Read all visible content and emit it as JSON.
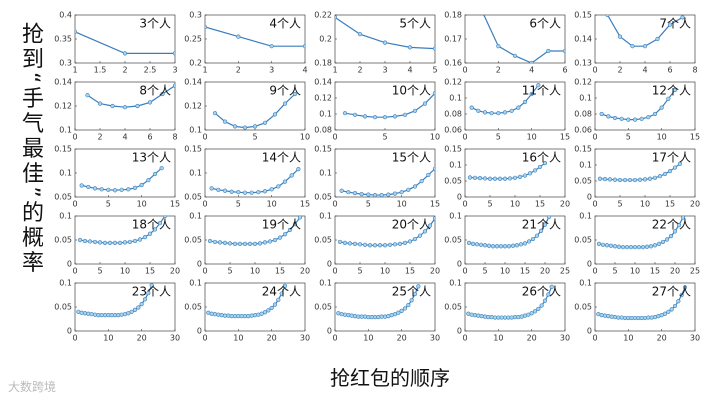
{
  "ylabel": "抢到“手气最佳”的概率",
  "xlabel": "抢红包的顺序",
  "watermark": "大数跨境",
  "chart_data": [
    {
      "type": "line",
      "title": "3个人",
      "x": [
        1,
        2,
        3
      ],
      "values": [
        0.365,
        0.32,
        0.32
      ],
      "xlim": [
        1,
        3
      ],
      "ylim": [
        0.3,
        0.4
      ],
      "xticks": [
        1,
        1.5,
        2,
        2.5,
        3
      ],
      "yticks": [
        0.3,
        0.35,
        0.4
      ],
      "color": "#3a7dbf"
    },
    {
      "type": "line",
      "title": "4个人",
      "x": [
        1,
        2,
        3,
        4
      ],
      "values": [
        0.275,
        0.255,
        0.235,
        0.235
      ],
      "xlim": [
        1,
        4
      ],
      "ylim": [
        0.2,
        0.3
      ],
      "xticks": [
        1,
        2,
        3,
        4
      ],
      "yticks": [
        0.2,
        0.25,
        0.3
      ],
      "color": "#3a7dbf"
    },
    {
      "type": "line",
      "title": "5个人",
      "x": [
        1,
        2,
        3,
        4,
        5
      ],
      "values": [
        0.218,
        0.204,
        0.197,
        0.193,
        0.192
      ],
      "xlim": [
        1,
        5
      ],
      "ylim": [
        0.18,
        0.22
      ],
      "xticks": [
        1,
        2,
        3,
        4,
        5
      ],
      "yticks": [
        0.18,
        0.2,
        0.22
      ],
      "color": "#3a7dbf"
    },
    {
      "type": "line",
      "title": "6个人",
      "x": [
        1,
        2,
        3,
        4,
        5,
        6
      ],
      "values": [
        0.182,
        0.167,
        0.163,
        0.16,
        0.165,
        0.165
      ],
      "xlim": [
        0,
        6
      ],
      "ylim": [
        0.16,
        0.18
      ],
      "xticks": [
        0,
        2,
        4,
        6
      ],
      "yticks": [
        0.16,
        0.17,
        0.18
      ],
      "color": "#3a7dbf"
    },
    {
      "type": "line",
      "title": "7个人",
      "x": [
        1,
        2,
        3,
        4,
        5,
        6,
        7
      ],
      "values": [
        0.15,
        0.141,
        0.137,
        0.137,
        0.14,
        0.146,
        0.149
      ],
      "xlim": [
        0,
        8
      ],
      "ylim": [
        0.13,
        0.15
      ],
      "xticks": [
        0,
        2,
        4,
        6,
        8
      ],
      "yticks": [
        0.13,
        0.14,
        0.15
      ],
      "color": "#3a7dbf"
    },
    {
      "type": "line",
      "title": "8个人",
      "x": [
        1,
        2,
        3,
        4,
        5,
        6,
        7,
        8
      ],
      "values": [
        0.129,
        0.122,
        0.12,
        0.119,
        0.12,
        0.123,
        0.13,
        0.137
      ],
      "xlim": [
        0,
        8
      ],
      "ylim": [
        0.1,
        0.14
      ],
      "xticks": [
        0,
        2,
        4,
        6,
        8
      ],
      "yticks": [
        0.1,
        0.12,
        0.14
      ],
      "color": "#3a7dbf"
    },
    {
      "type": "line",
      "title": "9个人",
      "x": [
        1,
        2,
        3,
        4,
        5,
        6,
        7,
        8,
        9
      ],
      "values": [
        0.114,
        0.107,
        0.103,
        0.102,
        0.103,
        0.106,
        0.113,
        0.122,
        0.13
      ],
      "xlim": [
        0,
        10
      ],
      "ylim": [
        0.1,
        0.14
      ],
      "xticks": [
        0,
        5,
        10
      ],
      "yticks": [
        0.1,
        0.12,
        0.14
      ],
      "color": "#3a7dbf"
    },
    {
      "type": "line",
      "title": "10个人",
      "x": [
        1,
        2,
        3,
        4,
        5,
        6,
        7,
        8,
        9,
        10
      ],
      "values": [
        0.101,
        0.099,
        0.097,
        0.096,
        0.096,
        0.097,
        0.099,
        0.104,
        0.113,
        0.126
      ],
      "xlim": [
        0,
        10
      ],
      "ylim": [
        0.08,
        0.14
      ],
      "xticks": [
        0,
        5,
        10
      ],
      "yticks": [
        0.08,
        0.1,
        0.12,
        0.14
      ],
      "color": "#3a7dbf"
    },
    {
      "type": "line",
      "title": "11个人",
      "x": [
        1,
        2,
        3,
        4,
        5,
        6,
        7,
        8,
        9,
        10,
        11
      ],
      "values": [
        0.088,
        0.084,
        0.082,
        0.081,
        0.081,
        0.082,
        0.084,
        0.088,
        0.095,
        0.105,
        0.116
      ],
      "xlim": [
        0,
        15
      ],
      "ylim": [
        0.06,
        0.12
      ],
      "xticks": [
        0,
        5,
        10,
        15
      ],
      "yticks": [
        0.06,
        0.08,
        0.1,
        0.12
      ],
      "color": "#3a7dbf"
    },
    {
      "type": "line",
      "title": "12个人",
      "x": [
        1,
        2,
        3,
        4,
        5,
        6,
        7,
        8,
        9,
        10,
        11,
        12
      ],
      "values": [
        0.08,
        0.077,
        0.075,
        0.074,
        0.073,
        0.073,
        0.074,
        0.076,
        0.08,
        0.088,
        0.099,
        0.11
      ],
      "xlim": [
        0,
        15
      ],
      "ylim": [
        0.06,
        0.12
      ],
      "xticks": [
        0,
        5,
        10,
        15
      ],
      "yticks": [
        0.06,
        0.08,
        0.1,
        0.12
      ],
      "color": "#3a7dbf"
    },
    {
      "type": "line",
      "title": "13个人",
      "x": [
        1,
        2,
        3,
        4,
        5,
        6,
        7,
        8,
        9,
        10,
        11,
        12,
        13
      ],
      "values": [
        0.074,
        0.071,
        0.068,
        0.066,
        0.065,
        0.064,
        0.065,
        0.066,
        0.069,
        0.075,
        0.085,
        0.098,
        0.11
      ],
      "xlim": [
        0,
        15
      ],
      "ylim": [
        0.05,
        0.15
      ],
      "xticks": [
        0,
        5,
        10,
        15
      ],
      "yticks": [
        0.05,
        0.1,
        0.15
      ],
      "color": "#3a7dbf"
    },
    {
      "type": "line",
      "title": "14个人",
      "x": [
        1,
        2,
        3,
        4,
        5,
        6,
        7,
        8,
        9,
        10,
        11,
        12,
        13,
        14
      ],
      "values": [
        0.068,
        0.065,
        0.063,
        0.061,
        0.06,
        0.059,
        0.059,
        0.06,
        0.062,
        0.066,
        0.072,
        0.082,
        0.095,
        0.108
      ],
      "xlim": [
        0,
        15
      ],
      "ylim": [
        0.05,
        0.15
      ],
      "xticks": [
        0,
        5,
        10,
        15
      ],
      "yticks": [
        0.05,
        0.1,
        0.15
      ],
      "color": "#3a7dbf"
    },
    {
      "type": "line",
      "title": "15个人",
      "x": [
        1,
        2,
        3,
        4,
        5,
        6,
        7,
        8,
        9,
        10,
        11,
        12,
        13,
        14,
        15
      ],
      "values": [
        0.063,
        0.06,
        0.058,
        0.056,
        0.055,
        0.054,
        0.054,
        0.055,
        0.057,
        0.06,
        0.065,
        0.072,
        0.083,
        0.096,
        0.109
      ],
      "xlim": [
        0,
        15
      ],
      "ylim": [
        0.05,
        0.15
      ],
      "xticks": [
        0,
        5,
        10,
        15
      ],
      "yticks": [
        0.05,
        0.1,
        0.15
      ],
      "color": "#3a7dbf"
    },
    {
      "type": "line",
      "title": "16个人",
      "x": [
        1,
        2,
        3,
        4,
        5,
        6,
        7,
        8,
        9,
        10,
        11,
        12,
        13,
        14,
        15,
        16
      ],
      "values": [
        0.061,
        0.06,
        0.059,
        0.058,
        0.057,
        0.057,
        0.057,
        0.057,
        0.058,
        0.06,
        0.063,
        0.067,
        0.074,
        0.083,
        0.094,
        0.106
      ],
      "xlim": [
        0,
        20
      ],
      "ylim": [
        0,
        0.15
      ],
      "xticks": [
        0,
        5,
        10,
        15,
        20
      ],
      "yticks": [
        0,
        0.05,
        0.1,
        0.15
      ],
      "color": "#3a7dbf"
    },
    {
      "type": "line",
      "title": "17个人",
      "x": [
        1,
        2,
        3,
        4,
        5,
        6,
        7,
        8,
        9,
        10,
        11,
        12,
        13,
        14,
        15,
        16,
        17
      ],
      "values": [
        0.057,
        0.056,
        0.055,
        0.054,
        0.053,
        0.053,
        0.053,
        0.053,
        0.054,
        0.055,
        0.057,
        0.06,
        0.065,
        0.072,
        0.081,
        0.092,
        0.104
      ],
      "xlim": [
        0,
        20
      ],
      "ylim": [
        0,
        0.15
      ],
      "xticks": [
        0,
        5,
        10,
        15,
        20
      ],
      "yticks": [
        0,
        0.05,
        0.1,
        0.15
      ],
      "color": "#3a7dbf"
    },
    {
      "type": "line",
      "title": "18个人",
      "x": [
        1,
        2,
        3,
        4,
        5,
        6,
        7,
        8,
        9,
        10,
        11,
        12,
        13,
        14,
        15,
        16,
        17,
        18
      ],
      "values": [
        0.05,
        0.048,
        0.047,
        0.046,
        0.045,
        0.044,
        0.044,
        0.044,
        0.044,
        0.045,
        0.046,
        0.048,
        0.051,
        0.056,
        0.063,
        0.072,
        0.085,
        0.1
      ],
      "xlim": [
        0,
        20
      ],
      "ylim": [
        0,
        0.1
      ],
      "xticks": [
        0,
        5,
        10,
        15,
        20
      ],
      "yticks": [
        0,
        0.05,
        0.1
      ],
      "color": "#3a7dbf"
    },
    {
      "type": "line",
      "title": "19个人",
      "x": [
        1,
        2,
        3,
        4,
        5,
        6,
        7,
        8,
        9,
        10,
        11,
        12,
        13,
        14,
        15,
        16,
        17,
        18,
        19
      ],
      "values": [
        0.048,
        0.046,
        0.045,
        0.044,
        0.043,
        0.042,
        0.042,
        0.042,
        0.042,
        0.042,
        0.043,
        0.045,
        0.047,
        0.05,
        0.055,
        0.062,
        0.071,
        0.083,
        0.097
      ],
      "xlim": [
        0,
        20
      ],
      "ylim": [
        0,
        0.1
      ],
      "xticks": [
        0,
        5,
        10,
        15,
        20
      ],
      "yticks": [
        0,
        0.05,
        0.1
      ],
      "color": "#3a7dbf"
    },
    {
      "type": "line",
      "title": "20个人",
      "x": [
        1,
        2,
        3,
        4,
        5,
        6,
        7,
        8,
        9,
        10,
        11,
        12,
        13,
        14,
        15,
        16,
        17,
        18,
        19,
        20
      ],
      "values": [
        0.046,
        0.044,
        0.043,
        0.042,
        0.041,
        0.04,
        0.039,
        0.039,
        0.039,
        0.039,
        0.04,
        0.041,
        0.042,
        0.044,
        0.047,
        0.052,
        0.059,
        0.068,
        0.08,
        0.095
      ],
      "xlim": [
        0,
        20
      ],
      "ylim": [
        0,
        0.1
      ],
      "xticks": [
        0,
        5,
        10,
        15,
        20
      ],
      "yticks": [
        0,
        0.05,
        0.1
      ],
      "color": "#3a7dbf"
    },
    {
      "type": "line",
      "title": "21个人",
      "x": [
        1,
        2,
        3,
        4,
        5,
        6,
        7,
        8,
        9,
        10,
        11,
        12,
        13,
        14,
        15,
        16,
        17,
        18,
        19,
        20,
        21
      ],
      "values": [
        0.044,
        0.042,
        0.041,
        0.04,
        0.039,
        0.038,
        0.037,
        0.037,
        0.037,
        0.037,
        0.037,
        0.038,
        0.039,
        0.041,
        0.043,
        0.047,
        0.052,
        0.059,
        0.069,
        0.082,
        0.098
      ],
      "xlim": [
        0,
        25
      ],
      "ylim": [
        0,
        0.1
      ],
      "xticks": [
        0,
        5,
        10,
        15,
        20,
        25
      ],
      "yticks": [
        0,
        0.05,
        0.1
      ],
      "color": "#3a7dbf"
    },
    {
      "type": "line",
      "title": "22个人",
      "x": [
        1,
        2,
        3,
        4,
        5,
        6,
        7,
        8,
        9,
        10,
        11,
        12,
        13,
        14,
        15,
        16,
        17,
        18,
        19,
        20,
        21,
        22
      ],
      "values": [
        0.042,
        0.04,
        0.039,
        0.038,
        0.037,
        0.036,
        0.035,
        0.035,
        0.035,
        0.035,
        0.035,
        0.035,
        0.036,
        0.037,
        0.039,
        0.042,
        0.046,
        0.051,
        0.058,
        0.068,
        0.081,
        0.097
      ],
      "xlim": [
        0,
        25
      ],
      "ylim": [
        0,
        0.1
      ],
      "xticks": [
        0,
        5,
        10,
        15,
        20,
        25
      ],
      "yticks": [
        0,
        0.05,
        0.1
      ],
      "color": "#3a7dbf"
    },
    {
      "type": "line",
      "title": "23个人",
      "x": [
        1,
        2,
        3,
        4,
        5,
        6,
        7,
        8,
        9,
        10,
        11,
        12,
        13,
        14,
        15,
        16,
        17,
        18,
        19,
        20,
        21,
        22,
        23
      ],
      "values": [
        0.04,
        0.038,
        0.037,
        0.036,
        0.035,
        0.034,
        0.033,
        0.033,
        0.033,
        0.033,
        0.033,
        0.033,
        0.033,
        0.034,
        0.035,
        0.037,
        0.04,
        0.044,
        0.049,
        0.056,
        0.066,
        0.079,
        0.095
      ],
      "xlim": [
        0,
        30
      ],
      "ylim": [
        0,
        0.1
      ],
      "xticks": [
        0,
        10,
        20,
        30
      ],
      "yticks": [
        0,
        0.05,
        0.1
      ],
      "color": "#3a7dbf"
    },
    {
      "type": "line",
      "title": "24个人",
      "x": [
        1,
        2,
        3,
        4,
        5,
        6,
        7,
        8,
        9,
        10,
        11,
        12,
        13,
        14,
        15,
        16,
        17,
        18,
        19,
        20,
        21,
        22,
        23,
        24
      ],
      "values": [
        0.038,
        0.036,
        0.035,
        0.034,
        0.033,
        0.032,
        0.032,
        0.031,
        0.031,
        0.031,
        0.031,
        0.031,
        0.031,
        0.032,
        0.033,
        0.034,
        0.036,
        0.039,
        0.043,
        0.048,
        0.055,
        0.065,
        0.078,
        0.094
      ],
      "xlim": [
        0,
        30
      ],
      "ylim": [
        0,
        0.1
      ],
      "xticks": [
        0,
        10,
        20,
        30
      ],
      "yticks": [
        0,
        0.05,
        0.1
      ],
      "color": "#3a7dbf"
    },
    {
      "type": "line",
      "title": "25个人",
      "x": [
        1,
        2,
        3,
        4,
        5,
        6,
        7,
        8,
        9,
        10,
        11,
        12,
        13,
        14,
        15,
        16,
        17,
        18,
        19,
        20,
        21,
        22,
        23,
        24,
        25
      ],
      "values": [
        0.037,
        0.035,
        0.034,
        0.033,
        0.032,
        0.031,
        0.03,
        0.03,
        0.03,
        0.029,
        0.029,
        0.029,
        0.029,
        0.03,
        0.03,
        0.031,
        0.033,
        0.035,
        0.038,
        0.042,
        0.047,
        0.054,
        0.064,
        0.077,
        0.093
      ],
      "xlim": [
        0,
        30
      ],
      "ylim": [
        0,
        0.1
      ],
      "xticks": [
        0,
        10,
        20,
        30
      ],
      "yticks": [
        0,
        0.05,
        0.1
      ],
      "color": "#3a7dbf"
    },
    {
      "type": "line",
      "title": "26个人",
      "x": [
        1,
        2,
        3,
        4,
        5,
        6,
        7,
        8,
        9,
        10,
        11,
        12,
        13,
        14,
        15,
        16,
        17,
        18,
        19,
        20,
        21,
        22,
        23,
        24,
        25,
        26
      ],
      "values": [
        0.036,
        0.034,
        0.033,
        0.032,
        0.031,
        0.03,
        0.029,
        0.029,
        0.028,
        0.028,
        0.028,
        0.028,
        0.028,
        0.028,
        0.029,
        0.029,
        0.03,
        0.032,
        0.034,
        0.037,
        0.041,
        0.046,
        0.053,
        0.063,
        0.076,
        0.092
      ],
      "xlim": [
        0,
        30
      ],
      "ylim": [
        0,
        0.1
      ],
      "xticks": [
        0,
        10,
        20,
        30
      ],
      "yticks": [
        0,
        0.05,
        0.1
      ],
      "color": "#3a7dbf"
    },
    {
      "type": "line",
      "title": "27个人",
      "x": [
        1,
        2,
        3,
        4,
        5,
        6,
        7,
        8,
        9,
        10,
        11,
        12,
        13,
        14,
        15,
        16,
        17,
        18,
        19,
        20,
        21,
        22,
        23,
        24,
        25,
        26,
        27
      ],
      "values": [
        0.035,
        0.033,
        0.032,
        0.031,
        0.03,
        0.029,
        0.028,
        0.028,
        0.027,
        0.027,
        0.027,
        0.027,
        0.027,
        0.027,
        0.027,
        0.028,
        0.028,
        0.029,
        0.031,
        0.033,
        0.036,
        0.04,
        0.045,
        0.052,
        0.062,
        0.075,
        0.091
      ],
      "xlim": [
        0,
        30
      ],
      "ylim": [
        0,
        0.1
      ],
      "xticks": [
        0,
        10,
        20,
        30
      ],
      "yticks": [
        0,
        0.05,
        0.1
      ],
      "color": "#3a7dbf"
    }
  ]
}
